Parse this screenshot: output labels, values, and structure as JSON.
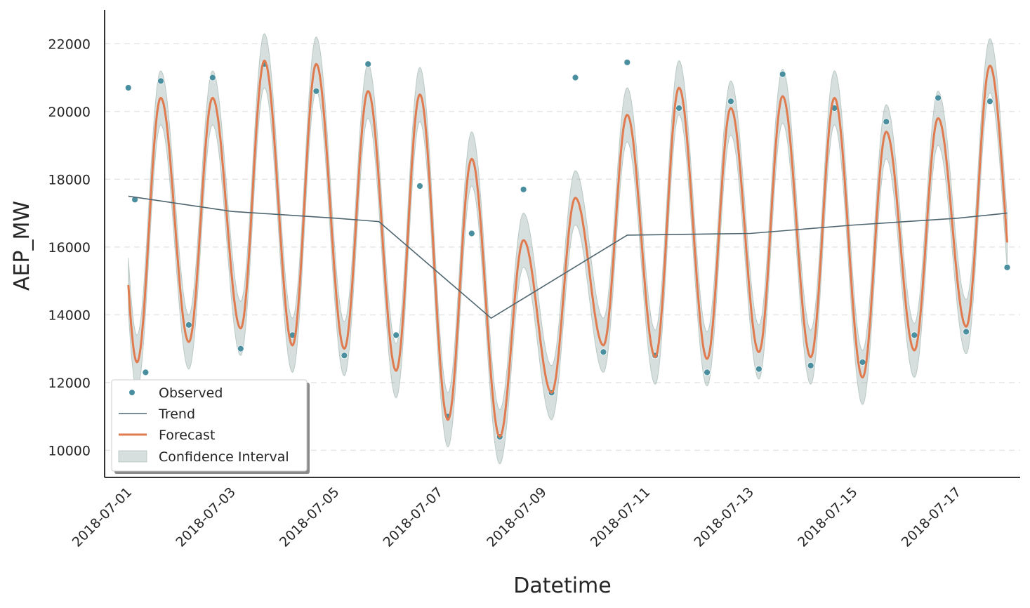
{
  "chart_data": {
    "type": "line",
    "title": "",
    "xlabel": "Datetime",
    "ylabel": "AEP_MW",
    "x_range": [
      "2018-06-30T13:00",
      "2018-07-18T05:00"
    ],
    "ylim": [
      9200,
      23000
    ],
    "y_ticks": [
      10000,
      12000,
      14000,
      16000,
      18000,
      20000,
      22000
    ],
    "x_ticks": [
      "2018-07-01",
      "2018-07-03",
      "2018-07-05",
      "2018-07-07",
      "2018-07-09",
      "2018-07-11",
      "2018-07-13",
      "2018-07-15",
      "2018-07-17"
    ],
    "grid": "y-dashed",
    "legend_position": "lower-left",
    "colors": {
      "observed": "#4a8f9f",
      "trend": "#4f6670",
      "forecast": "#e07a4f",
      "confidence": "#9db3ad"
    },
    "legend": [
      {
        "key": "observed",
        "label": "Observed"
      },
      {
        "key": "trend",
        "label": "Trend"
      },
      {
        "key": "forecast",
        "label": "Forecast"
      },
      {
        "key": "confidence",
        "label": "Confidence Interval"
      }
    ],
    "trend": {
      "x": [
        "2018-07-01T00:00",
        "2018-07-03T00:00",
        "2018-07-05T00:00",
        "2018-07-05T20:00",
        "2018-07-08T00:00",
        "2018-07-10T15:00",
        "2018-07-13T00:00",
        "2018-07-15T00:00",
        "2018-07-17T00:00",
        "2018-07-17T23:00"
      ],
      "y": [
        17500,
        17050,
        16850,
        16750,
        13900,
        16350,
        16400,
        16650,
        16850,
        17000
      ]
    },
    "forecast_daily": {
      "days": [
        "2018-07-01",
        "2018-07-02",
        "2018-07-03",
        "2018-07-04",
        "2018-07-05",
        "2018-07-06",
        "2018-07-07",
        "2018-07-08",
        "2018-07-09",
        "2018-07-10",
        "2018-07-11",
        "2018-07-12",
        "2018-07-13",
        "2018-07-14",
        "2018-07-15",
        "2018-07-16",
        "2018-07-17",
        "2018-07-18"
      ],
      "peak": [
        20400,
        20400,
        21500,
        21400,
        20600,
        20500,
        18600,
        16200,
        17450,
        19900,
        20700,
        20100,
        20450,
        20400,
        19400,
        19800,
        21350,
        16150
      ],
      "trough": [
        12600,
        13200,
        13600,
        13100,
        13000,
        12350,
        10900,
        10400,
        11700,
        13100,
        12750,
        12700,
        12900,
        12750,
        12150,
        12950,
        13650,
        13650
      ],
      "peak_hour": 15,
      "trough_hour": 4
    },
    "confidence_halfwidth": 800,
    "observed": {
      "x": [
        "2018-07-01T00:00",
        "2018-07-01T03:00",
        "2018-07-01T08:00",
        "2018-07-01T15:00",
        "2018-07-02T04:00",
        "2018-07-02T15:00",
        "2018-07-03T04:00",
        "2018-07-03T15:00",
        "2018-07-04T04:00",
        "2018-07-04T15:00",
        "2018-07-05T04:00",
        "2018-07-05T15:00",
        "2018-07-06T04:00",
        "2018-07-06T15:00",
        "2018-07-07T04:00",
        "2018-07-07T15:00",
        "2018-07-08T04:00",
        "2018-07-08T15:00",
        "2018-07-09T04:00",
        "2018-07-09T15:00",
        "2018-07-10T04:00",
        "2018-07-10T15:00",
        "2018-07-11T04:00",
        "2018-07-11T15:00",
        "2018-07-12T04:00",
        "2018-07-12T15:00",
        "2018-07-13T04:00",
        "2018-07-13T15:00",
        "2018-07-14T04:00",
        "2018-07-14T15:00",
        "2018-07-15T04:00",
        "2018-07-15T15:00",
        "2018-07-16T04:00",
        "2018-07-16T15:00",
        "2018-07-17T04:00",
        "2018-07-17T15:00",
        "2018-07-17T23:00"
      ],
      "y": [
        20700,
        17400,
        12300,
        20900,
        13700,
        21000,
        13000,
        21400,
        13400,
        20600,
        12800,
        21400,
        13400,
        17800,
        11000,
        16400,
        10400,
        17700,
        11700,
        21000,
        12900,
        21450,
        12800,
        20100,
        12300,
        20300,
        12400,
        21100,
        12500,
        20100,
        12600,
        19700,
        13400,
        20400,
        13500,
        20300,
        15400
      ]
    }
  }
}
